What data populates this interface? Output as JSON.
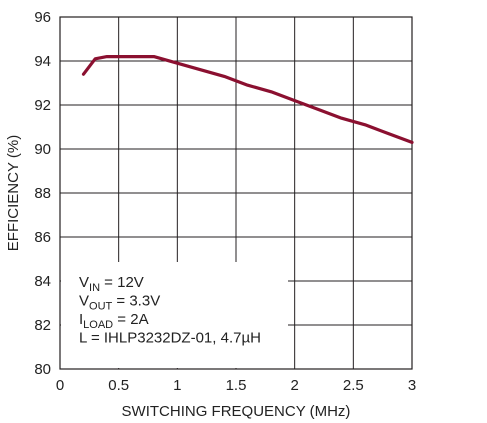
{
  "chart_data": {
    "type": "line",
    "xlabel": "SWITCHING FREQUENCY (MHz)",
    "ylabel": "EFFICIENCY (%)",
    "xlim": [
      0,
      3
    ],
    "ylim": [
      80,
      96
    ],
    "x_ticks": [
      0,
      0.5,
      1,
      1.5,
      2,
      2.5,
      3
    ],
    "x_tick_labels": [
      "0",
      "0.5",
      "1",
      "1.5",
      "2",
      "2.5",
      "3"
    ],
    "y_ticks": [
      80,
      82,
      84,
      86,
      88,
      90,
      92,
      94,
      96
    ],
    "y_tick_labels": [
      "80",
      "82",
      "84",
      "86",
      "88",
      "90",
      "92",
      "94",
      "96"
    ],
    "grid": true,
    "line_color": "#8b1030",
    "series": [
      {
        "x": [
          0.2,
          0.3,
          0.4,
          0.5,
          0.6,
          0.7,
          0.8,
          1.0,
          1.2,
          1.4,
          1.6,
          1.8,
          2.0,
          2.2,
          2.4,
          2.6,
          2.8,
          3.0
        ],
        "y": [
          93.4,
          94.1,
          94.2,
          94.2,
          94.2,
          94.2,
          94.2,
          93.9,
          93.6,
          93.3,
          92.9,
          92.6,
          92.2,
          91.8,
          91.4,
          91.1,
          90.7,
          90.3
        ]
      }
    ],
    "annotation": {
      "lines": [
        {
          "main": "V",
          "sub": "IN",
          "rest": " = 12V"
        },
        {
          "main": "V",
          "sub": "OUT",
          "rest": " = 3.3V"
        },
        {
          "main": "I",
          "sub": "LOAD",
          "rest": " = 2A"
        },
        {
          "main": "L = IHLP3232DZ-01, 4.7µH",
          "sub": "",
          "rest": ""
        }
      ]
    }
  }
}
